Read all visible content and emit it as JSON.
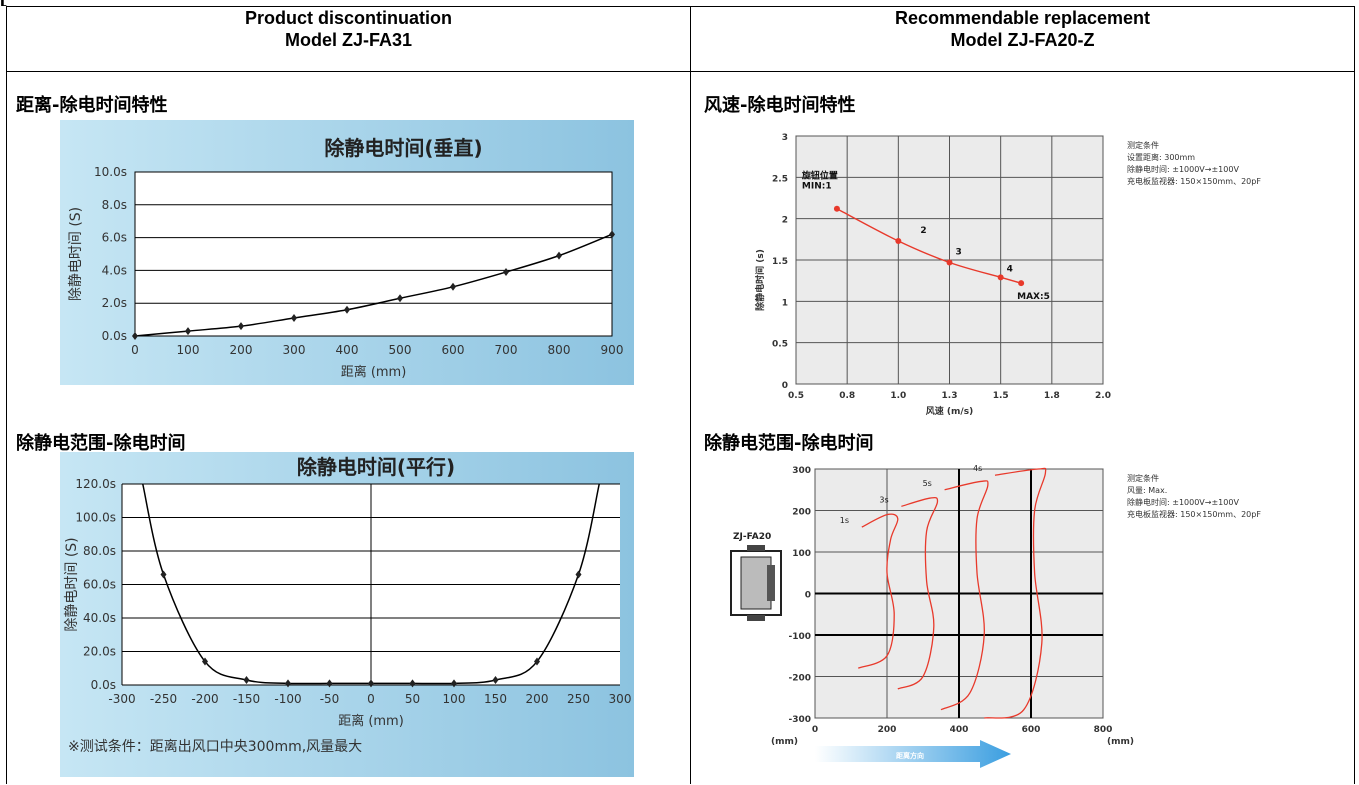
{
  "header": {
    "left_line1": "Product discontinuation",
    "left_line2": "Model ZJ-FA31",
    "right_line1": "Recommendable replacement",
    "right_line2": "Model ZJ-FA20-Z"
  },
  "left": {
    "section1_title": "距离-除电时间特性",
    "section2_title": "除静电范围-除电时间"
  },
  "right": {
    "section1_title": "风速-除电时间特性",
    "section2_title": "除静电范围-除电时间"
  },
  "chart_data": [
    {
      "id": "fa31-vertical",
      "type": "line",
      "title": "除静电时间(垂直)",
      "xlabel": "距离 (mm)",
      "ylabel": "除静电时间 (S)",
      "x": [
        0,
        100,
        200,
        300,
        400,
        500,
        600,
        700,
        800,
        900
      ],
      "y": [
        0.0,
        0.3,
        0.6,
        1.1,
        1.6,
        2.3,
        3.0,
        3.9,
        4.9,
        6.2
      ],
      "xlim": [
        0,
        900
      ],
      "ylim": [
        0,
        10
      ],
      "xticks": [
        "0",
        "100",
        "200",
        "300",
        "400",
        "500",
        "600",
        "700",
        "800",
        "900"
      ],
      "yticks": [
        "0.0s",
        "2.0s",
        "4.0s",
        "6.0s",
        "8.0s",
        "10.0s"
      ],
      "grid": "horizontal",
      "colors": {
        "background": "#aad4ea",
        "plot": "#ffffff",
        "line": "#000000"
      }
    },
    {
      "id": "fa31-parallel",
      "type": "line",
      "title": "除静电时间(平行)",
      "xlabel": "距离 (mm)",
      "ylabel": "除静电时间 (S)",
      "x": [
        -250,
        -200,
        -150,
        -100,
        -50,
        0,
        50,
        100,
        150,
        200,
        250
      ],
      "y": [
        66,
        14,
        3,
        1,
        1,
        1,
        1,
        1,
        3,
        14,
        66
      ],
      "xlim": [
        -300,
        300
      ],
      "ylim": [
        0,
        120
      ],
      "xticks": [
        "-300",
        "-250",
        "-200",
        "-150",
        "-100",
        "-50",
        "0",
        "50",
        "100",
        "150",
        "200",
        "250",
        "300"
      ],
      "yticks": [
        "0.0s",
        "20.0s",
        "40.0s",
        "60.0s",
        "80.0s",
        "100.0s",
        "120.0s"
      ],
      "grid": "horizontal",
      "note": "※测试条件：距离出风口中央300mm,风量最大",
      "colors": {
        "background": "#aad4ea",
        "plot": "#ffffff",
        "line": "#000000"
      }
    },
    {
      "id": "fa20-windspeed",
      "type": "line",
      "xlabel": "风速 (m/s)",
      "ylabel": "除静电时间 (s)",
      "x": [
        0.7,
        1.0,
        1.25,
        1.5,
        1.6
      ],
      "y": [
        2.12,
        1.73,
        1.47,
        1.29,
        1.22
      ],
      "point_labels": [
        "旋钮位置\nMIN:1",
        "2",
        "3",
        "4",
        "MAX:5"
      ],
      "xlim": [
        0.5,
        2.0
      ],
      "ylim": [
        0,
        3
      ],
      "xticks": [
        "0.5",
        "0.8",
        "1.0",
        "1.3",
        "1.5",
        "1.8",
        "2.0"
      ],
      "yticks": [
        "0",
        "0.5",
        "1",
        "1.5",
        "2",
        "2.5",
        "3"
      ],
      "grid": "both",
      "conditions": [
        "测定条件",
        "设置距离: 300mm",
        "除静电时间: ±1000V→±100V",
        "充电板监视器: 150×150mm、20pF"
      ],
      "colors": {
        "line": "#e8392b",
        "grid": "#555555"
      }
    },
    {
      "id": "fa20-range",
      "type": "line",
      "x_unit": "(mm)",
      "y_unit": "(mm)",
      "xticks": [
        "0",
        "200",
        "400",
        "600",
        "800"
      ],
      "yticks": [
        "300",
        "200",
        "100",
        "0",
        "-100",
        "-200",
        "-300"
      ],
      "xlim": [
        0,
        800
      ],
      "ylim": [
        -300,
        300
      ],
      "grid": "both",
      "series": [
        {
          "name": "1s",
          "x": [
            120,
            200,
            220,
            200,
            210,
            230,
            200,
            130
          ],
          "y": [
            -180,
            -150,
            -50,
            50,
            130,
            180,
            190,
            160
          ]
        },
        {
          "name": "3s",
          "x": [
            230,
            300,
            330,
            310,
            310,
            340,
            320,
            240
          ],
          "y": [
            -230,
            -200,
            -80,
            30,
            150,
            220,
            230,
            210
          ]
        },
        {
          "name": "5s",
          "x": [
            350,
            430,
            470,
            450,
            450,
            480,
            460,
            360
          ],
          "y": [
            -280,
            -240,
            -100,
            50,
            180,
            260,
            270,
            250
          ]
        },
        {
          "name": "4s",
          "x": [
            470,
            580,
            630,
            610,
            610,
            640,
            620,
            500
          ],
          "y": [
            -300,
            -280,
            -120,
            50,
            200,
            290,
            300,
            285
          ]
        }
      ],
      "device_label": "ZJ-FA20",
      "arrow_label": "距离方向",
      "conditions": [
        "测定条件",
        "风量: Max.",
        "除静电时间: ±1000V→±100V",
        "充电板监视器: 150×150mm、20pF"
      ],
      "colors": {
        "line": "#e8392b",
        "grid": "#555555",
        "arrow": "#3a9ee0"
      }
    }
  ]
}
